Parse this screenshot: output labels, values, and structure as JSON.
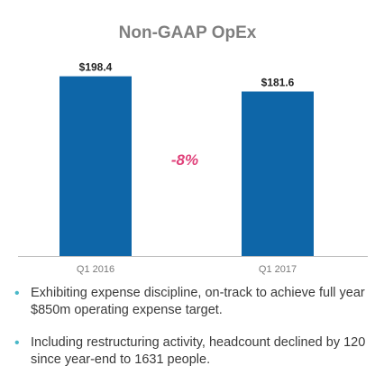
{
  "title": "Non-GAAP OpEx",
  "chart_data": {
    "type": "bar",
    "categories": [
      "Q1 2016",
      "Q1 2017"
    ],
    "values": [
      198.4,
      181.6
    ],
    "value_labels": [
      "$198.4",
      "$181.6"
    ],
    "ylim": [
      0,
      205
    ],
    "grid": false,
    "annotation": "-8%",
    "colors": {
      "bar": "#0e66a8",
      "axis": "#bcbcbc",
      "annotation": "#e0417a",
      "tick_label": "#7a7a7a",
      "value_label": "#222222"
    }
  },
  "bullets": [
    "Exhibiting expense discipline, on-track to achieve  full year $850m operating expense target.",
    "Including restructuring activity, headcount declined by 120 since year-end to 1631 people."
  ],
  "colors": {
    "bullet": "#4ab8c8"
  }
}
